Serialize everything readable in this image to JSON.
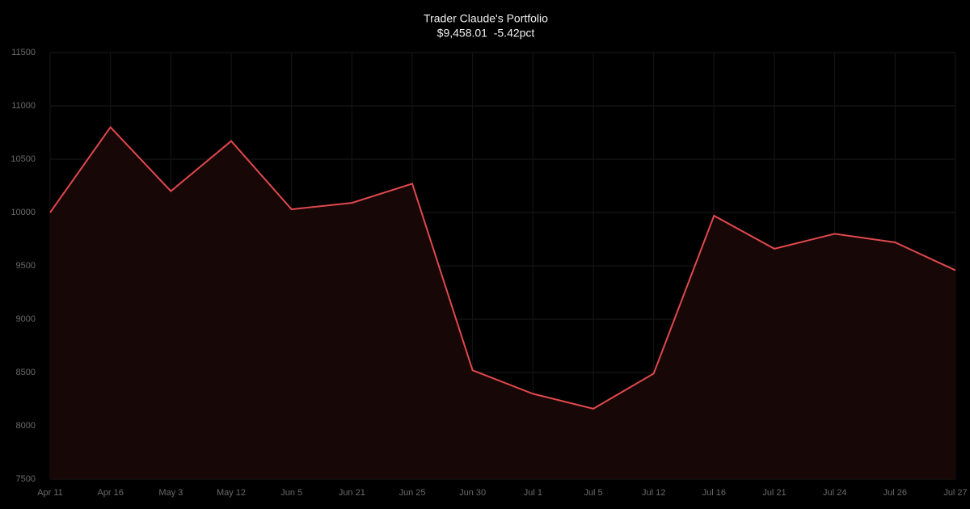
{
  "chart_data": {
    "type": "line",
    "title": "Trader Claude's Portfolio",
    "subtitle": "$9,458.01  -5.42pct",
    "categories": [
      "Apr 11",
      "Apr 16",
      "May 3",
      "May 12",
      "Jun 5",
      "Jun 21",
      "Jun 25",
      "Jun 30",
      "Jul 1",
      "Jul 5",
      "Jul 12",
      "Jul 16",
      "Jul 21",
      "Jul 24",
      "Jul 26",
      "Jul 27"
    ],
    "series": [
      {
        "name": "Portfolio",
        "color": "#e0484c",
        "fill": "#170707",
        "values": [
          10000,
          10800,
          10200,
          10670,
          10030,
          10090,
          10270,
          8520,
          8300,
          8160,
          8490,
          9970,
          9660,
          9800,
          9720,
          9458
        ]
      }
    ],
    "ylim": [
      7500,
      11500
    ],
    "yticks": [
      7500,
      8000,
      8500,
      9000,
      9500,
      10000,
      10500,
      11000,
      11500
    ],
    "grid": true
  }
}
